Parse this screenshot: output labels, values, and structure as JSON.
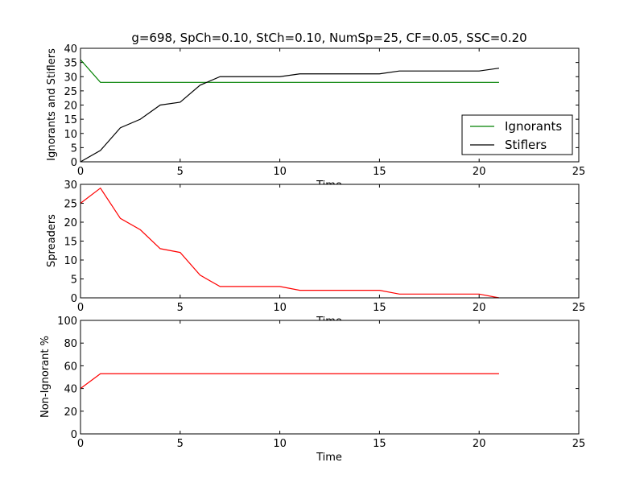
{
  "chart_data": [
    {
      "type": "line",
      "title": "g=698, SpCh=0.10, StCh=0.10, NumSp=25, CF=0.05, SSC=0.20",
      "xlabel": "Time",
      "ylabel": "Ignorants and Stiflers",
      "xlim": [
        0,
        25
      ],
      "ylim": [
        0,
        40
      ],
      "xticks": [
        "0",
        "5",
        "10",
        "15",
        "20",
        "25"
      ],
      "yticks": [
        "0",
        "5",
        "10",
        "15",
        "20",
        "25",
        "30",
        "35",
        "40"
      ],
      "grid": false,
      "legend": "lower-right",
      "x": [
        0,
        1,
        2,
        3,
        4,
        5,
        6,
        7,
        8,
        9,
        10,
        11,
        12,
        13,
        14,
        15,
        16,
        17,
        18,
        19,
        20,
        21
      ],
      "series": [
        {
          "name": "Ignorants",
          "color": "#008000",
          "values": [
            36,
            28,
            28,
            28,
            28,
            28,
            28,
            28,
            28,
            28,
            28,
            28,
            28,
            28,
            28,
            28,
            28,
            28,
            28,
            28,
            28,
            28
          ]
        },
        {
          "name": "Stiflers",
          "color": "#000000",
          "values": [
            0,
            4,
            12,
            15,
            20,
            21,
            27,
            30,
            30,
            30,
            30,
            31,
            31,
            31,
            31,
            31,
            32,
            32,
            32,
            32,
            32,
            33
          ]
        }
      ]
    },
    {
      "type": "line",
      "title": "",
      "xlabel": "Time",
      "ylabel": "Spreaders",
      "xlim": [
        0,
        25
      ],
      "ylim": [
        0,
        30
      ],
      "xticks": [
        "0",
        "5",
        "10",
        "15",
        "20",
        "25"
      ],
      "yticks": [
        "0",
        "5",
        "10",
        "15",
        "20",
        "25",
        "30"
      ],
      "grid": false,
      "x": [
        0,
        1,
        2,
        3,
        4,
        5,
        6,
        7,
        8,
        9,
        10,
        11,
        12,
        13,
        14,
        15,
        16,
        17,
        18,
        19,
        20,
        21
      ],
      "series": [
        {
          "color": "#ff0000",
          "values": [
            25,
            29,
            21,
            18,
            13,
            12,
            6,
            3,
            3,
            3,
            3,
            2,
            2,
            2,
            2,
            2,
            1,
            1,
            1,
            1,
            1,
            0
          ]
        }
      ]
    },
    {
      "type": "line",
      "title": "",
      "xlabel": "Time",
      "ylabel": "Non-Ignorant %",
      "xlim": [
        0,
        25
      ],
      "ylim": [
        0,
        100
      ],
      "xticks": [
        "0",
        "5",
        "10",
        "15",
        "20",
        "25"
      ],
      "yticks": [
        "0",
        "20",
        "40",
        "60",
        "80",
        "100"
      ],
      "grid": false,
      "x": [
        0,
        1,
        2,
        3,
        4,
        5,
        6,
        7,
        8,
        9,
        10,
        11,
        12,
        13,
        14,
        15,
        16,
        17,
        18,
        19,
        20,
        21
      ],
      "series": [
        {
          "color": "#ff0000",
          "values": [
            40,
            53,
            53,
            53,
            53,
            53,
            53,
            53,
            53,
            53,
            53,
            53,
            53,
            53,
            53,
            53,
            53,
            53,
            53,
            53,
            53,
            53
          ]
        }
      ]
    }
  ]
}
